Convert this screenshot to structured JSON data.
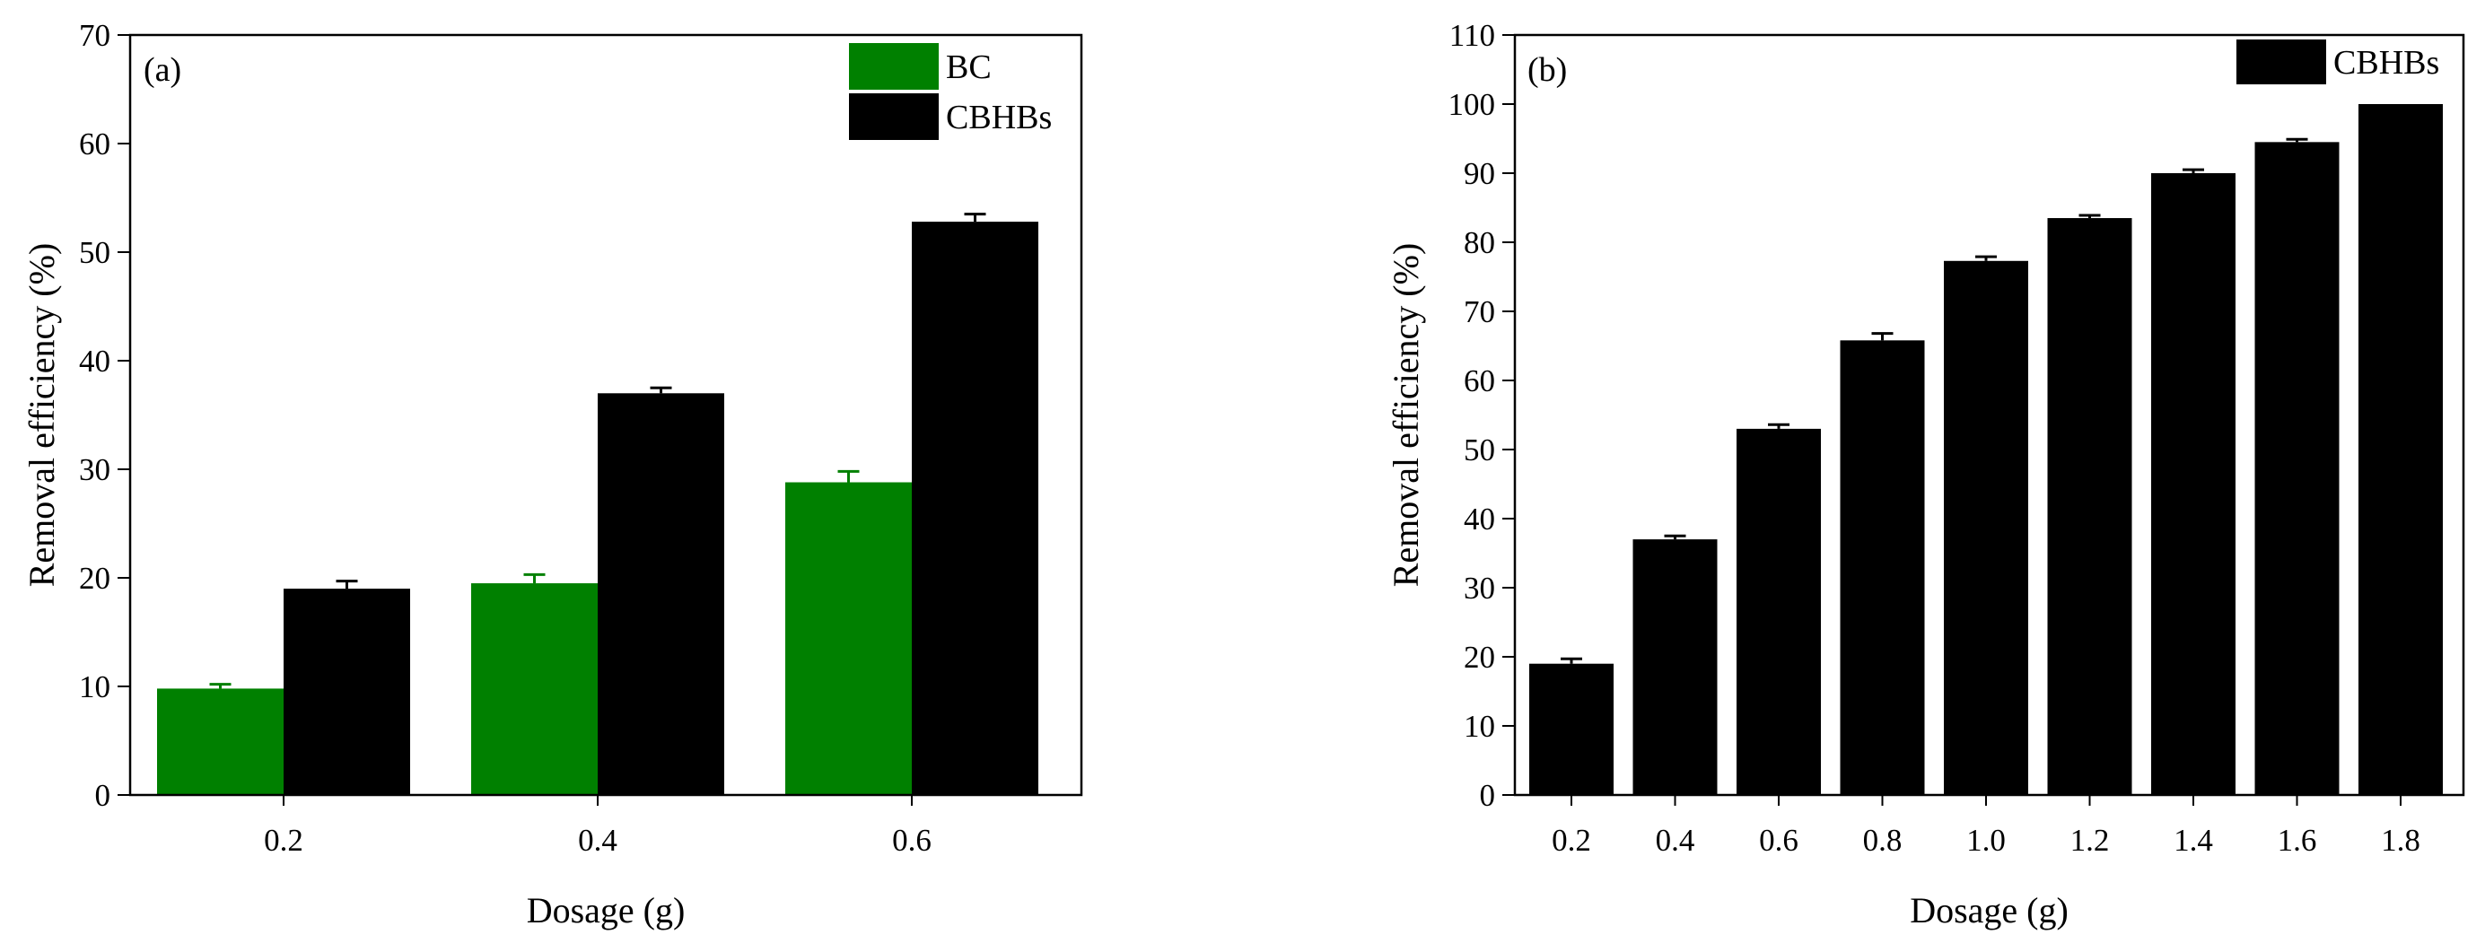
{
  "chart_data": [
    {
      "type": "bar",
      "panel_label": "(a)",
      "categories": [
        "0.2",
        "0.4",
        "0.6"
      ],
      "series": [
        {
          "name": "BC",
          "values": [
            9.8,
            19.5,
            28.8
          ],
          "errors": [
            0.4,
            0.8,
            1.0
          ],
          "color": "#008000"
        },
        {
          "name": "CBHBs",
          "values": [
            19.0,
            37.0,
            52.8
          ],
          "errors": [
            0.7,
            0.5,
            0.7
          ],
          "color": "#000000"
        }
      ],
      "xlabel": "Dosage (g)",
      "ylabel": "Removal efficiency (%)",
      "ylim": [
        0,
        70
      ],
      "yticks": [
        "0",
        "10",
        "20",
        "30",
        "40",
        "50",
        "60",
        "70"
      ],
      "grid": false,
      "legend_position": "top-right"
    },
    {
      "type": "bar",
      "panel_label": "(b)",
      "categories": [
        "0.2",
        "0.4",
        "0.6",
        "0.8",
        "1.0",
        "1.2",
        "1.4",
        "1.6",
        "1.8"
      ],
      "series": [
        {
          "name": "CBHBs",
          "values": [
            19.0,
            37.0,
            53.0,
            65.8,
            77.3,
            83.5,
            90.0,
            94.5,
            100.0
          ],
          "errors": [
            0.7,
            0.5,
            0.6,
            1.0,
            0.6,
            0.4,
            0.5,
            0.4,
            0.0
          ],
          "color": "#000000"
        }
      ],
      "xlabel": "Dosage (g)",
      "ylabel": "Removal efficiency (%)",
      "ylim": [
        0,
        110
      ],
      "yticks": [
        "0",
        "10",
        "20",
        "30",
        "40",
        "50",
        "60",
        "70",
        "80",
        "90",
        "100",
        "110"
      ],
      "grid": false,
      "legend_position": "top-right"
    }
  ]
}
